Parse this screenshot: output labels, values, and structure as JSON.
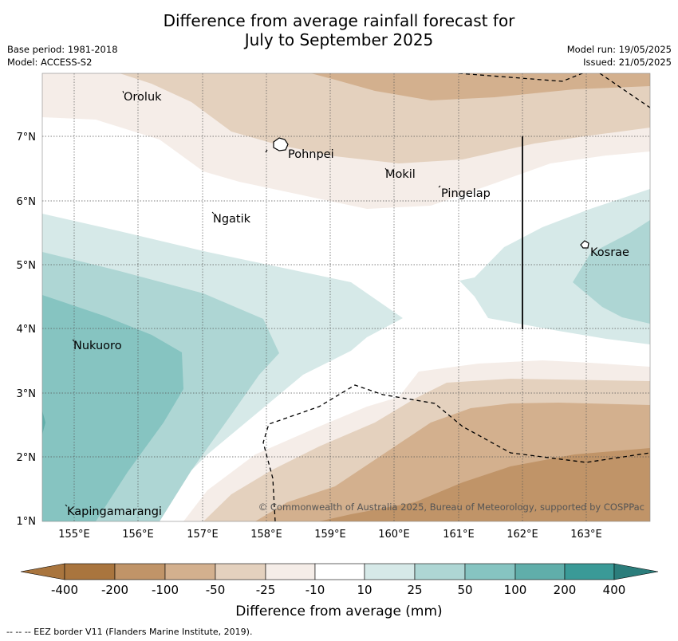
{
  "title": {
    "line1": "Difference from average rainfall forecast for",
    "line2": "July to September 2025"
  },
  "meta": {
    "base_period": "Base period: 1981-2018",
    "model": "Model: ACCESS-S2",
    "model_run": "Model run: 19/05/2025",
    "issued": "Issued: 21/05/2025"
  },
  "map": {
    "lat_labels": [
      "7°N",
      "6°N",
      "5°N",
      "4°N",
      "3°N",
      "2°N",
      "1°N"
    ],
    "lon_labels": [
      "155°E",
      "156°E",
      "157°E",
      "158°E",
      "159°E",
      "160°E",
      "161°E",
      "162°E",
      "163°E"
    ],
    "places": [
      "Oroluk",
      "Pohnpei",
      "Mokil",
      "Pingelap",
      "Ngatik",
      "Kosrae",
      "Nukuoro",
      "Kapingamarangi"
    ],
    "attribution": "© Commonwealth of Australia 2025, Bureau of Meteorology, supported by COSPPac",
    "colors": {
      "dry_extreme": "#a9753e",
      "dry_200": "#c09468",
      "dry_100": "#d3b08e",
      "dry_50": "#e4d1be",
      "dry_25": "#f5ede8",
      "neutral": "#ffffff",
      "wet_10": "#d6e9e8",
      "wet_25": "#aed6d4",
      "wet_50": "#86c4c1",
      "wet_100": "#60aeaa",
      "wet_200": "#3a9a97",
      "wet_extreme": "#2b7d7b"
    }
  },
  "colorbar": {
    "ticks": [
      "-400",
      "-200",
      "-100",
      "-50",
      "-25",
      "-10",
      "10",
      "25",
      "50",
      "100",
      "200",
      "400"
    ],
    "label": "Difference from average (mm)"
  },
  "footnote": "--  --  -- EEZ border V11 (Flanders Marine Institute, 2019)."
}
